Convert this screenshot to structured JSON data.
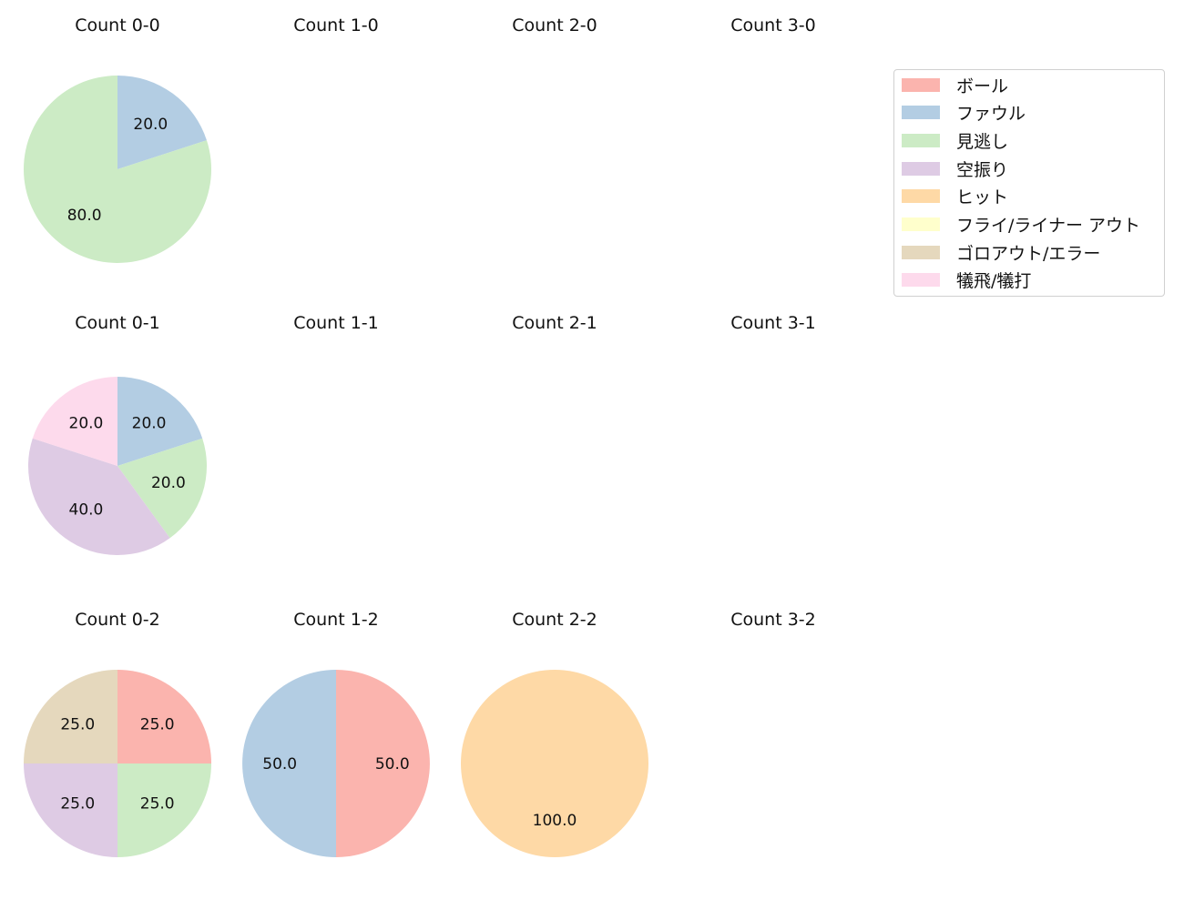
{
  "chart_data": {
    "type": "pie",
    "legend": {
      "position": "upper right",
      "entries": [
        {
          "label": "ボール",
          "color": "#fbb4ae"
        },
        {
          "label": "ファウル",
          "color": "#b3cde3"
        },
        {
          "label": "見逃し",
          "color": "#ccebc5"
        },
        {
          "label": "空振り",
          "color": "#decbe4"
        },
        {
          "label": "ヒット",
          "color": "#fed9a6"
        },
        {
          "label": "フライ/ライナー アウト",
          "color": "#ffffcc"
        },
        {
          "label": "ゴロアウト/エラー",
          "color": "#e5d8bd"
        },
        {
          "label": "犠飛/犠打",
          "color": "#fddaec"
        }
      ]
    },
    "subplots": [
      {
        "title": "Count 0-0",
        "col": 0,
        "row": 0,
        "slices": [
          {
            "category": "ファウル",
            "value": 20.0,
            "label": "20.0"
          },
          {
            "category": "見逃し",
            "value": 80.0,
            "label": "80.0"
          }
        ]
      },
      {
        "title": "Count 1-0",
        "col": 1,
        "row": 0,
        "slices": []
      },
      {
        "title": "Count 2-0",
        "col": 2,
        "row": 0,
        "slices": []
      },
      {
        "title": "Count 3-0",
        "col": 3,
        "row": 0,
        "slices": []
      },
      {
        "title": "Count 0-1",
        "col": 0,
        "row": 1,
        "slices": [
          {
            "category": "ファウル",
            "value": 20.0,
            "label": "20.0"
          },
          {
            "category": "見逃し",
            "value": 20.0,
            "label": "20.0"
          },
          {
            "category": "空振り",
            "value": 40.0,
            "label": "40.0"
          },
          {
            "category": "犠飛/犠打",
            "value": 20.0,
            "label": "20.0"
          }
        ]
      },
      {
        "title": "Count 1-1",
        "col": 1,
        "row": 1,
        "slices": []
      },
      {
        "title": "Count 2-1",
        "col": 2,
        "row": 1,
        "slices": []
      },
      {
        "title": "Count 3-1",
        "col": 3,
        "row": 1,
        "slices": []
      },
      {
        "title": "Count 0-2",
        "col": 0,
        "row": 2,
        "slices": [
          {
            "category": "ボール",
            "value": 25.0,
            "label": "25.0"
          },
          {
            "category": "見逃し",
            "value": 25.0,
            "label": "25.0"
          },
          {
            "category": "空振り",
            "value": 25.0,
            "label": "25.0"
          },
          {
            "category": "ゴロアウト/エラー",
            "value": 25.0,
            "label": "25.0"
          }
        ]
      },
      {
        "title": "Count 1-2",
        "col": 1,
        "row": 2,
        "slices": [
          {
            "category": "ボール",
            "value": 50.0,
            "label": "50.0"
          },
          {
            "category": "ファウル",
            "value": 50.0,
            "label": "50.0"
          }
        ]
      },
      {
        "title": "Count 2-2",
        "col": 2,
        "row": 2,
        "slices": [
          {
            "category": "ヒット",
            "value": 100.0,
            "label": "100.0"
          }
        ]
      },
      {
        "title": "Count 3-2",
        "col": 3,
        "row": 2,
        "slices": []
      }
    ],
    "start_angle": 90,
    "direction": "clockwise",
    "autopct": "%.1f"
  }
}
